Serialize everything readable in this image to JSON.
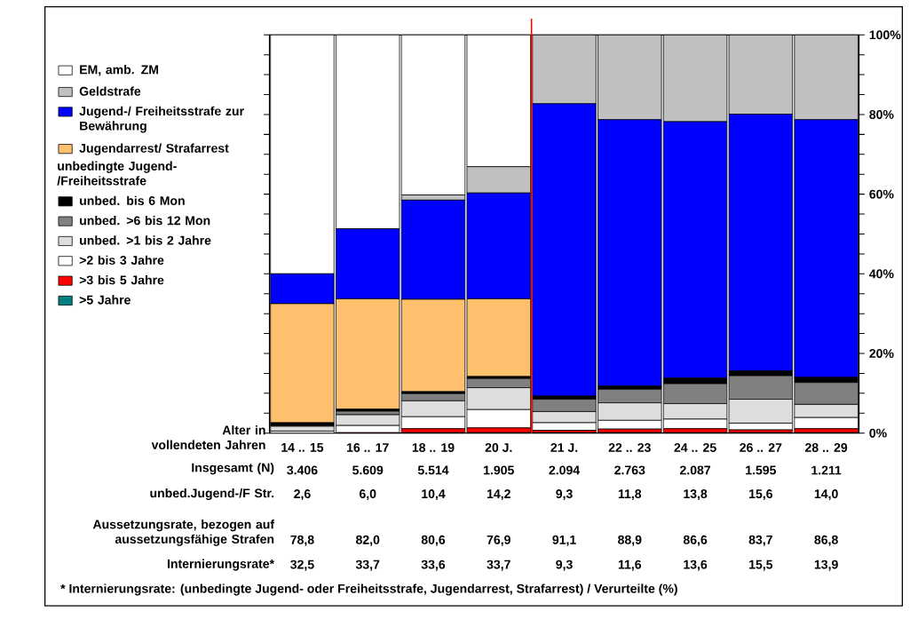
{
  "chart_data": {
    "type": "bar",
    "stacked": true,
    "categories": [
      "14 .. 15",
      "16 .. 17",
      "18 .. 19",
      "20 J.",
      "21 J.",
      "22 .. 23",
      "24 .. 25",
      "26 .. 27",
      "28 .. 29"
    ],
    "xlabel": "Alter in vollendeten Jahren",
    "legend_title": "unbedingte Jugend-/Freiheitsstrafe",
    "legend": "top left",
    "series": [
      {
        "name": ">5 Jahre",
        "color": "#008080",
        "values": [
          0,
          0,
          0.1,
          0.1,
          0.1,
          0.1,
          0.1,
          0.1,
          0.1
        ]
      },
      {
        "name": ">3 bis 5 Jahre",
        "color": "#ff0000",
        "values": [
          0,
          0.1,
          1.0,
          1.2,
          0.6,
          0.9,
          1.0,
          0.7,
          1.0
        ]
      },
      {
        "name": ">2 bis 3 Jahre",
        "color": "#ffffff",
        "values": [
          0.5,
          1.8,
          3.0,
          4.6,
          1.9,
          2.2,
          2.4,
          1.7,
          2.8
        ]
      },
      {
        "name": "unbed. >1 bis  2 Jahre",
        "color": "#dddddd",
        "values": [
          1.2,
          2.7,
          4.0,
          5.5,
          2.8,
          4.4,
          3.9,
          6.0,
          3.3
        ]
      },
      {
        "name": "unbed. >6 bis 12 Mon",
        "color": "#808080",
        "values": [
          0.2,
          0.9,
          1.8,
          2.3,
          3.1,
          3.4,
          5.0,
          5.9,
          5.5
        ]
      },
      {
        "name": "unbed. bis 6 Mon",
        "color": "#000000",
        "values": [
          0.7,
          0.5,
          0.5,
          0.5,
          0.8,
          0.8,
          1.4,
          1.2,
          1.3
        ]
      },
      {
        "name": "Jugendarrest/ Strafarrest",
        "color": "#ffc06e",
        "values": [
          29.9,
          27.7,
          23.2,
          19.5,
          0,
          0,
          0,
          0,
          0
        ]
      },
      {
        "name": "Jugend-/ Freiheitsstrafe zur Bewährung",
        "color": "#0000ff",
        "values": [
          7.5,
          17.6,
          24.9,
          26.6,
          73.4,
          66.9,
          64.4,
          64.5,
          64.7
        ]
      },
      {
        "name": "Geldstrafe",
        "color": "#c0c0c0",
        "values": [
          0,
          0,
          1.3,
          6.6,
          17.3,
          21.3,
          21.8,
          19.9,
          21.3
        ]
      },
      {
        "name": "EM, amb. ZM",
        "color": "#ffffff",
        "values": [
          60.0,
          48.7,
          40.2,
          33.1,
          0,
          0,
          0,
          0,
          0
        ]
      }
    ],
    "ylim": [
      0,
      100
    ],
    "yticks": [
      {
        "value": 0,
        "label": "0%"
      },
      {
        "value": 5,
        "label": null
      },
      {
        "value": 10,
        "label": null
      },
      {
        "value": 15,
        "label": null
      },
      {
        "value": 20,
        "label": "20%"
      },
      {
        "value": 25,
        "label": null
      },
      {
        "value": 30,
        "label": null
      },
      {
        "value": 35,
        "label": null
      },
      {
        "value": 40,
        "label": "40%"
      },
      {
        "value": 45,
        "label": null
      },
      {
        "value": 50,
        "label": null
      },
      {
        "value": 55,
        "label": null
      },
      {
        "value": 60,
        "label": "60%"
      },
      {
        "value": 65,
        "label": null
      },
      {
        "value": 70,
        "label": null
      },
      {
        "value": 75,
        "label": null
      },
      {
        "value": 80,
        "label": "80%"
      },
      {
        "value": 85,
        "label": null
      },
      {
        "value": 90,
        "label": null
      },
      {
        "value": 95,
        "label": null
      },
      {
        "value": 100,
        "label": "100%"
      }
    ],
    "ref_lines": [
      {
        "axis": "x",
        "value": "21 J.",
        "color": "#ff0000"
      }
    ],
    "annotations": [
      "Insgesamt (N)",
      "3.406",
      "5.609",
      "5.514",
      "1.905",
      "2.094",
      "2.763",
      "2.087",
      "1.595",
      "1.211",
      "unbed.Jugend-/F Str.",
      "2,6",
      "6,0",
      "10,4",
      "14,2",
      "9,3",
      "11,8",
      "13,8",
      "15,6",
      "14,0",
      "Aussetzungsrate, bezogen auf aussetzungsfähige Strafen",
      "78,8",
      "82,0",
      "80,6",
      "76,9",
      "91,1",
      "88,9",
      "86,6",
      "83,7",
      "86,8",
      "Internierungsrate*",
      "32,5",
      "33,7",
      "33,6",
      "33,7",
      "9,3",
      "11,6",
      "13,6",
      "15,5",
      "13,9",
      "*  Internierungsrate: (unbedingte Jugend- oder Freiheitsstrafe, Jugendarrest, Strafarrest) /  Verurteilte (%)"
    ]
  }
}
